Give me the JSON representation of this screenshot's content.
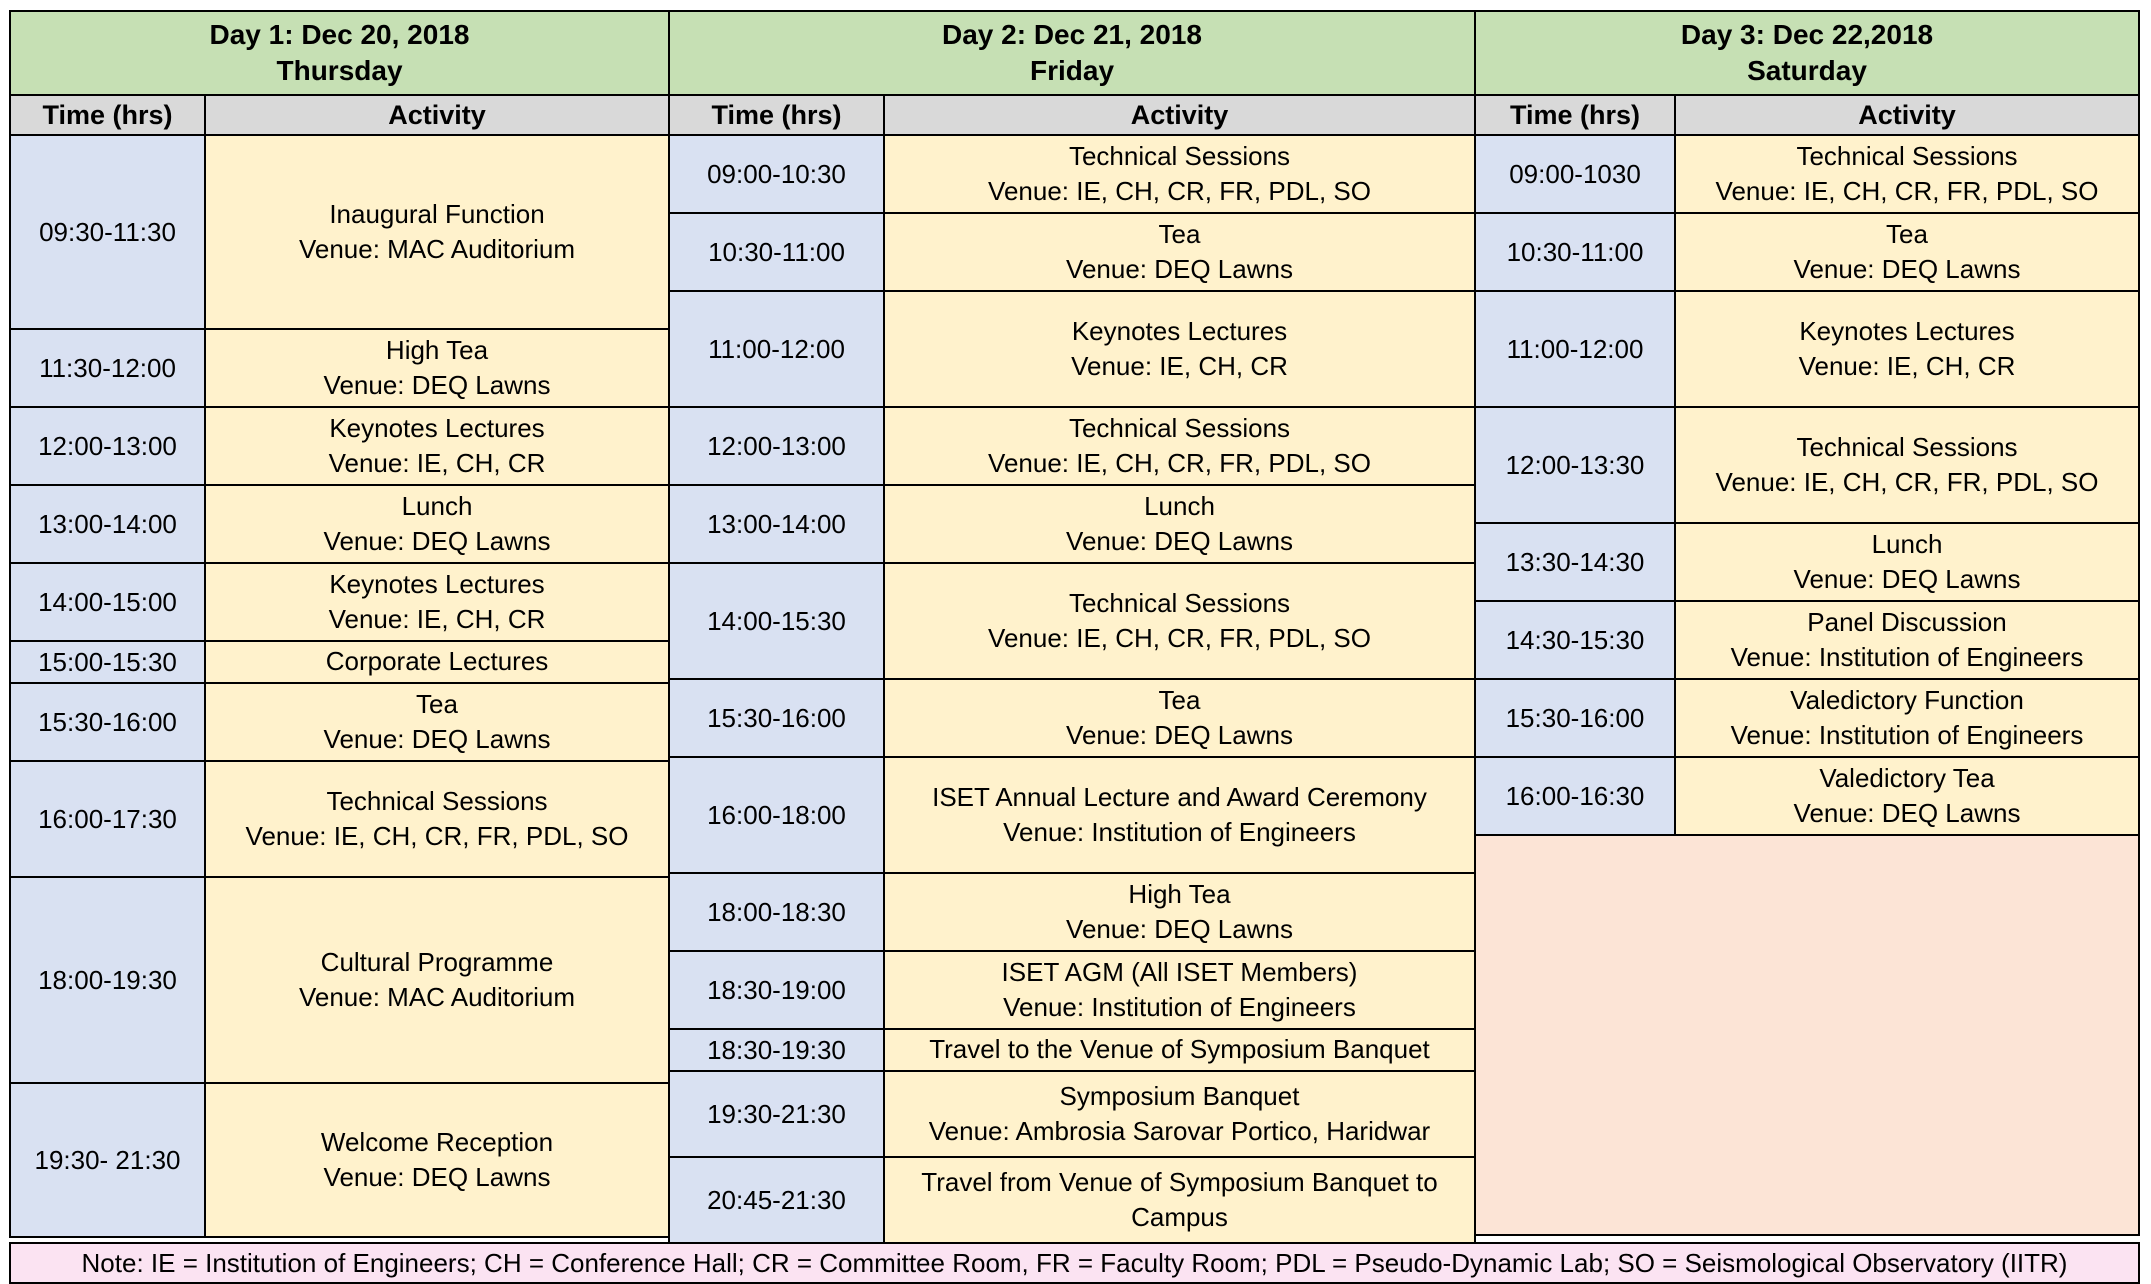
{
  "days": [
    {
      "title": "Day 1: Dec 20, 2018",
      "subtitle": "Thursday",
      "time_header": "Time (hrs)",
      "activity_header": "Activity",
      "rows": [
        {
          "time": "09:30-11:30",
          "activity": "Inaugural Function",
          "venue": "Venue: MAC Auditorium"
        },
        {
          "time": "11:30-12:00",
          "activity": "High Tea",
          "venue": "Venue: DEQ Lawns"
        },
        {
          "time": "12:00-13:00",
          "activity": "Keynotes Lectures",
          "venue": "Venue: IE, CH, CR"
        },
        {
          "time": "13:00-14:00",
          "activity": "Lunch",
          "venue": "Venue: DEQ Lawns"
        },
        {
          "time": "14:00-15:00",
          "activity": "Keynotes Lectures",
          "venue": "Venue: IE, CH, CR"
        },
        {
          "time": "15:00-15:30",
          "activity": "Corporate Lectures"
        },
        {
          "time": "15:30-16:00",
          "activity": "Tea",
          "venue": "Venue: DEQ Lawns"
        },
        {
          "time": "16:00-17:30",
          "activity": "Technical Sessions",
          "venue": "Venue: IE, CH, CR, FR, PDL, SO"
        },
        {
          "time": "18:00-19:30",
          "activity": "Cultural Programme",
          "venue": "Venue: MAC Auditorium"
        },
        {
          "time": "19:30- 21:30",
          "activity": "Welcome Reception",
          "venue": "Venue: DEQ Lawns"
        }
      ]
    },
    {
      "title": "Day 2: Dec 21, 2018",
      "subtitle": "Friday",
      "time_header": "Time (hrs)",
      "activity_header": "Activity",
      "rows": [
        {
          "time": "09:00-10:30",
          "activity": "Technical Sessions",
          "venue": "Venue: IE, CH, CR, FR, PDL, SO"
        },
        {
          "time": "10:30-11:00",
          "activity": "Tea",
          "venue": "Venue: DEQ Lawns"
        },
        {
          "time": "11:00-12:00",
          "activity": "Keynotes Lectures",
          "venue": "Venue: IE, CH, CR"
        },
        {
          "time": "12:00-13:00",
          "activity": "Technical Sessions",
          "venue": "Venue: IE, CH, CR, FR, PDL, SO"
        },
        {
          "time": "13:00-14:00",
          "activity": "Lunch",
          "venue": "Venue: DEQ Lawns"
        },
        {
          "time": "14:00-15:30",
          "activity": "Technical Sessions",
          "venue": "Venue: IE, CH, CR, FR, PDL, SO"
        },
        {
          "time": "15:30-16:00",
          "activity": "Tea",
          "venue": "Venue: DEQ Lawns"
        },
        {
          "time": "16:00-18:00",
          "activity": "ISET Annual Lecture and Award Ceremony",
          "venue": "Venue: Institution of Engineers"
        },
        {
          "time": "18:00-18:30",
          "activity": "High Tea",
          "venue": "Venue: DEQ Lawns"
        },
        {
          "time": "18:30-19:00",
          "activity": "ISET AGM (All ISET Members)",
          "venue": "Venue: Institution of Engineers"
        },
        {
          "time": "18:30-19:30",
          "activity": "Travel to the Venue of Symposium Banquet"
        },
        {
          "time": "19:30-21:30",
          "activity": "Symposium Banquet",
          "venue": "Venue: Ambrosia Sarovar Portico, Haridwar"
        },
        {
          "time": "20:45-21:30",
          "activity": "Travel from Venue of Symposium Banquet to Campus"
        }
      ]
    },
    {
      "title": "Day 3: Dec 22,2018",
      "subtitle": "Saturday",
      "time_header": "Time (hrs)",
      "activity_header": "Activity",
      "rows": [
        {
          "time": "09:00-1030",
          "activity": "Technical Sessions",
          "venue": "Venue: IE, CH, CR, FR, PDL, SO"
        },
        {
          "time": "10:30-11:00",
          "activity": "Tea",
          "venue": "Venue: DEQ Lawns"
        },
        {
          "time": "11:00-12:00",
          "activity": "Keynotes Lectures",
          "venue": "Venue: IE, CH, CR"
        },
        {
          "time": "12:00-13:30",
          "activity": "Technical Sessions",
          "venue": "Venue: IE, CH, CR, FR, PDL, SO"
        },
        {
          "time": "13:30-14:30",
          "activity": "Lunch",
          "venue": "Venue: DEQ Lawns"
        },
        {
          "time": "14:30-15:30",
          "activity": "Panel Discussion",
          "venue": "Venue: Institution of Engineers"
        },
        {
          "time": "15:30-16:00",
          "activity": "Valedictory Function",
          "venue": "Venue: Institution of Engineers"
        },
        {
          "time": "16:00-16:30",
          "activity": "Valedictory Tea",
          "venue": "Venue: DEQ Lawns"
        }
      ]
    }
  ],
  "note": "Note: IE = Institution of Engineers; CH = Conference Hall; CR = Committee Room, FR = Faculty Room; PDL = Pseudo-Dynamic Lab; SO = Seismological Observatory (IITR)",
  "colors": {
    "day_header": "#c6e0b4",
    "column_header": "#d9d9d9",
    "time_cell": "#d9e1f2",
    "activity_cell": "#fff2cc",
    "empty_block": "#fce4d6",
    "note_bar": "#fbe3f2",
    "border": "#000000"
  }
}
